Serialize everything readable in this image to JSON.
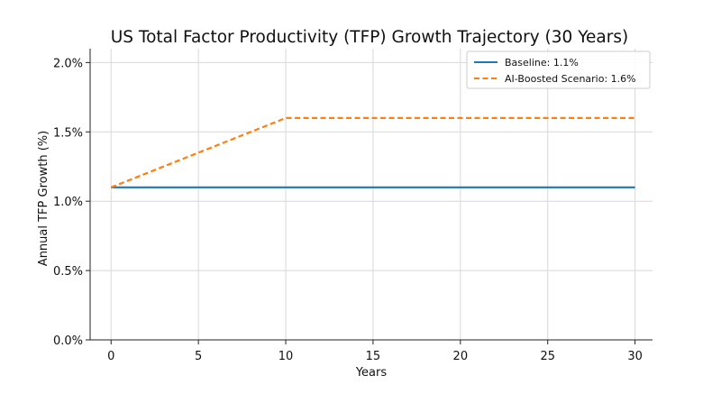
{
  "chart_data": {
    "type": "line",
    "title": "US Total Factor Productivity (TFP) Growth Trajectory (30 Years)",
    "xlabel": "Years",
    "ylabel": "Annual TFP Growth (%)",
    "xlim": [
      -1.2,
      31
    ],
    "ylim": [
      0.0,
      2.1
    ],
    "x_ticks": [
      0,
      5,
      10,
      15,
      20,
      25,
      30
    ],
    "x_tick_labels": [
      "0",
      "5",
      "10",
      "15",
      "20",
      "25",
      "30"
    ],
    "y_ticks": [
      0.0,
      0.5,
      1.0,
      1.5,
      2.0
    ],
    "y_tick_labels": [
      "0.0%",
      "0.5%",
      "1.0%",
      "1.5%",
      "2.0%"
    ],
    "grid": true,
    "legend_position": "top-right",
    "series": [
      {
        "name": "Baseline: 1.1%",
        "color": "#1f77b4",
        "style": "solid",
        "x": [
          0,
          10,
          30
        ],
        "y": [
          1.1,
          1.1,
          1.1
        ]
      },
      {
        "name": "AI-Boosted Scenario: 1.6%",
        "color": "#ff7f0e",
        "style": "dashed",
        "x": [
          0,
          10,
          30
        ],
        "y": [
          1.1,
          1.6,
          1.6
        ]
      }
    ]
  }
}
